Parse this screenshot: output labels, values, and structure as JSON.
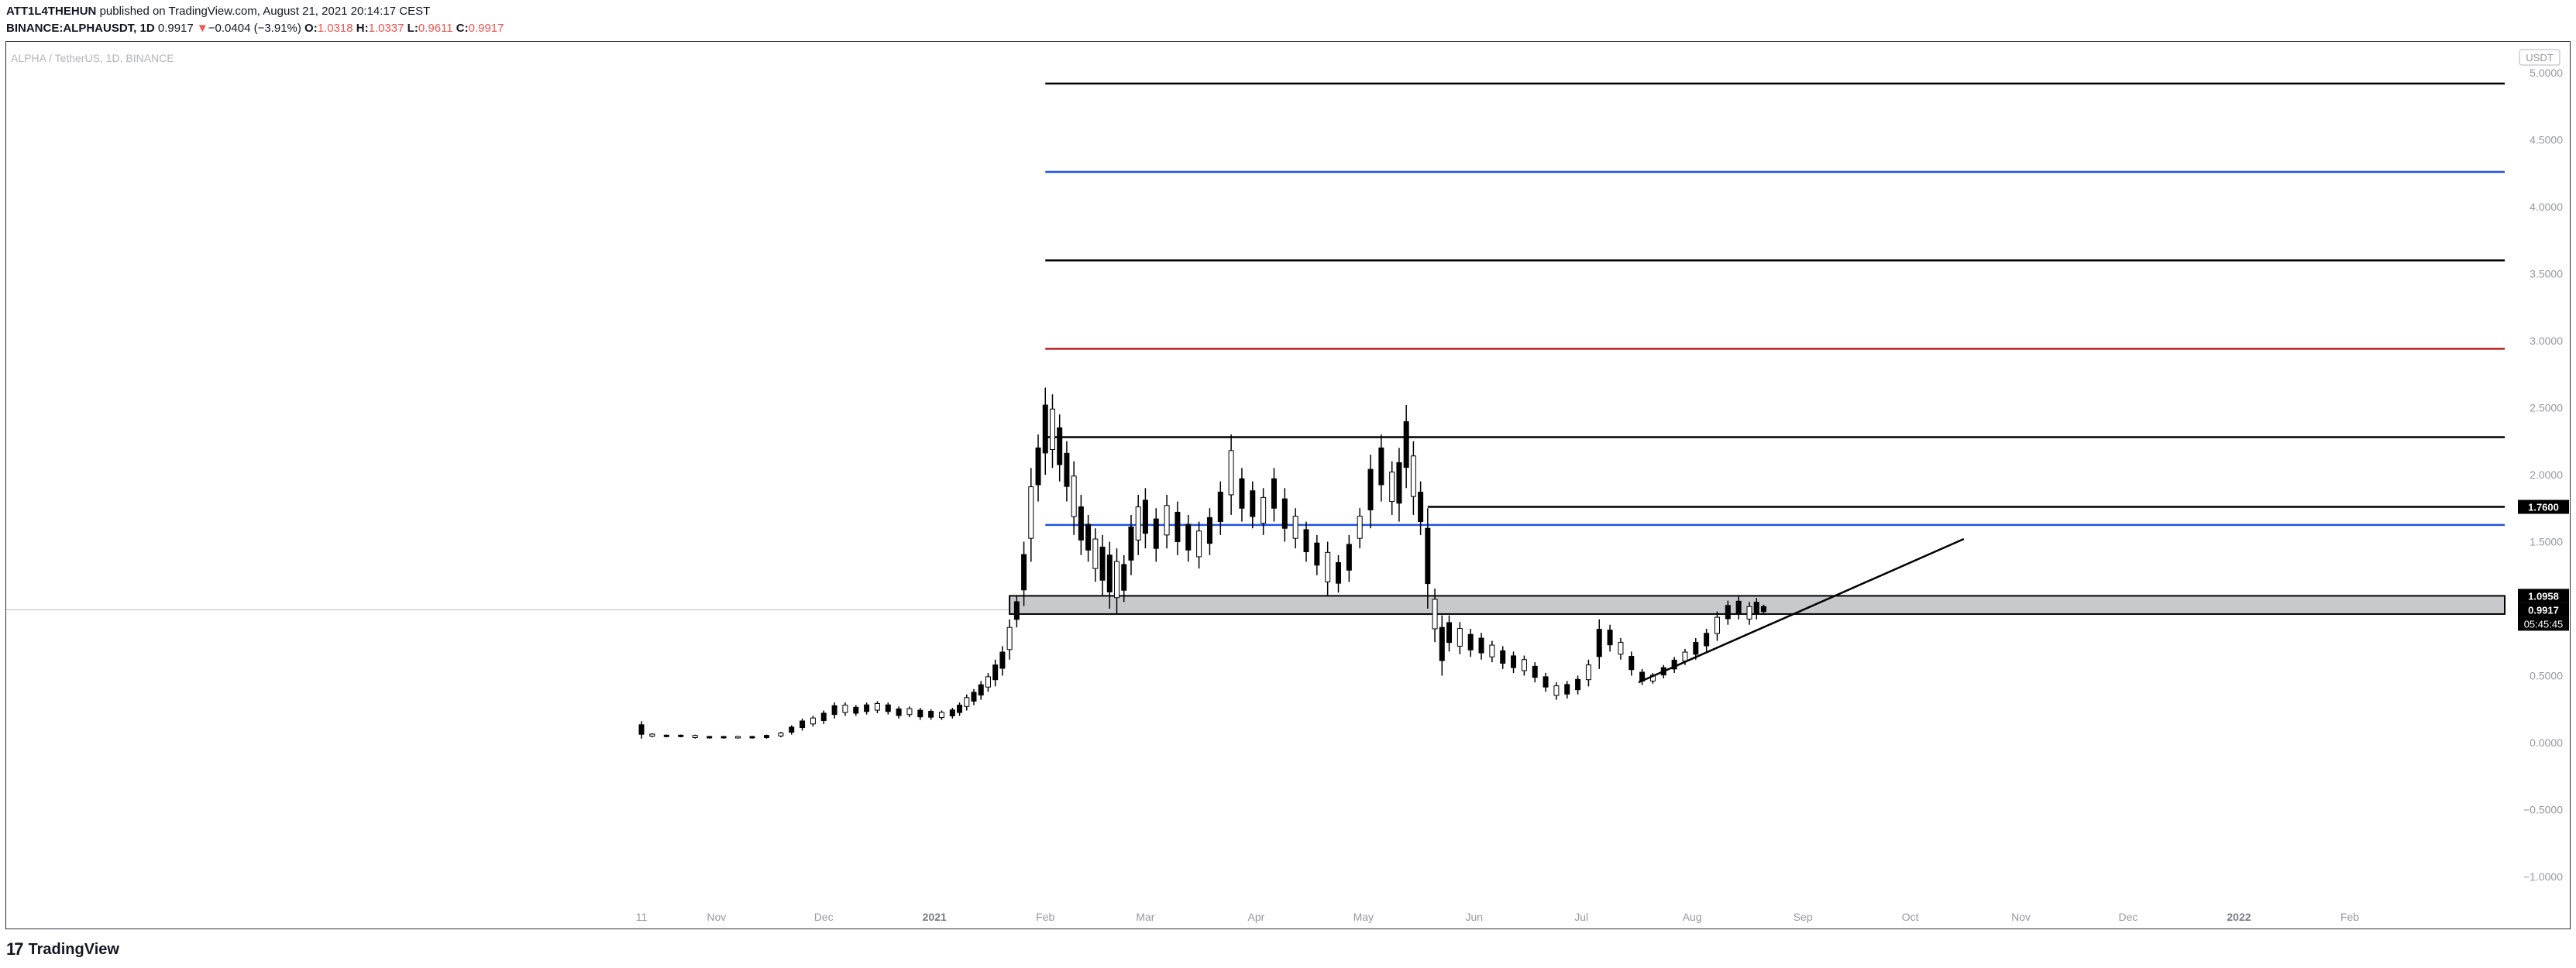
{
  "header": {
    "author": "ATT1L4THEHUN",
    "published_text": "published on TradingView.com, August 21, 2021 20:14:17 CEST",
    "symbol": "BINANCE:ALPHAUSDT, 1D",
    "last": "0.9917",
    "change_arrow": "▼",
    "change": "−0.0404 (−3.91%)",
    "o_label": "O:",
    "o_value": "1.0318",
    "h_label": "H:",
    "h_value": "1.0337",
    "l_label": "L:",
    "l_value": "0.9611",
    "c_label": "C:",
    "c_value": "0.9917"
  },
  "chart_data": {
    "type": "candlestick",
    "title": "ALPHA / TetherUS, 1D, BINANCE",
    "currency_label": "USDT",
    "x_labels": [
      "11",
      "Nov",
      "Dec",
      "2021",
      "Feb",
      "Mar",
      "Apr",
      "May",
      "Jun",
      "Jul",
      "Aug",
      "Sep",
      "Oct",
      "Nov",
      "Dec",
      "2022",
      "Feb"
    ],
    "x_labels_bold": [
      "2021",
      "2022"
    ],
    "x_dates": [
      "2020-10-11",
      "2020-11-01",
      "2020-12-01",
      "2021-01-01",
      "2021-02-01",
      "2021-03-01",
      "2021-04-01",
      "2021-05-01",
      "2021-06-01",
      "2021-07-01",
      "2021-08-01",
      "2021-09-01",
      "2021-10-01",
      "2021-11-01",
      "2021-12-01",
      "2022-01-01",
      "2022-02-01"
    ],
    "y_ticks": [
      5.0,
      4.5,
      4.0,
      3.5,
      3.0,
      2.5,
      2.0,
      1.5,
      0.5,
      0.0,
      -0.5,
      -1.0
    ],
    "y_tick_labels": [
      "5.0000",
      "4.5000",
      "4.0000",
      "3.5000",
      "3.0000",
      "2.5000",
      "2.0000",
      "1.5000",
      "0.5000",
      "0.0000",
      "−0.5000",
      "−1.0000"
    ],
    "ylim": [
      -1.1,
      5.1
    ],
    "price_line": 0.9917,
    "price_badges": [
      {
        "value": 1.76,
        "label": "1.7600"
      },
      {
        "value": 1.0958,
        "label": "1.0958"
      },
      {
        "value": 0.9917,
        "label": "0.9917"
      }
    ],
    "countdown": "05:45:45",
    "horizontal_levels": [
      {
        "y": 4.92,
        "color": "#000000",
        "start": "2021-02-01"
      },
      {
        "y": 4.26,
        "color": "#1e53e5",
        "start": "2021-02-01"
      },
      {
        "y": 3.6,
        "color": "#000000",
        "start": "2021-02-01"
      },
      {
        "y": 2.94,
        "color": "#b71c1c",
        "start": "2021-02-01"
      },
      {
        "y": 2.28,
        "color": "#000000",
        "start": "2021-02-01"
      },
      {
        "y": 1.76,
        "color": "#000000",
        "start": "2021-05-19"
      },
      {
        "y": 1.625,
        "color": "#1e53e5",
        "start": "2021-02-01"
      }
    ],
    "zone": {
      "y_top": 1.0958,
      "y_bottom": 0.96,
      "start": "2021-01-22",
      "color": "#c8c9cc"
    },
    "trendline": {
      "x1": "2021-07-17",
      "y1": 0.45,
      "x2": "2021-10-16",
      "y2": 1.52,
      "color": "#000000"
    },
    "candles": [
      [
        "2020-10-11",
        0.16,
        0.03
      ],
      [
        "2020-10-14",
        0.07,
        0.04
      ],
      [
        "2020-10-18",
        0.06,
        0.04
      ],
      [
        "2020-10-22",
        0.06,
        0.04
      ],
      [
        "2020-10-26",
        0.06,
        0.03
      ],
      [
        "2020-10-30",
        0.05,
        0.03
      ],
      [
        "2020-11-03",
        0.05,
        0.03
      ],
      [
        "2020-11-07",
        0.05,
        0.03
      ],
      [
        "2020-11-11",
        0.05,
        0.03
      ],
      [
        "2020-11-15",
        0.06,
        0.03
      ],
      [
        "2020-11-19",
        0.08,
        0.04
      ],
      [
        "2020-11-22",
        0.13,
        0.06
      ],
      [
        "2020-11-25",
        0.18,
        0.09
      ],
      [
        "2020-11-28",
        0.2,
        0.12
      ],
      [
        "2020-12-01",
        0.24,
        0.14
      ],
      [
        "2020-12-04",
        0.3,
        0.18
      ],
      [
        "2020-12-07",
        0.3,
        0.2
      ],
      [
        "2020-12-10",
        0.28,
        0.2
      ],
      [
        "2020-12-13",
        0.3,
        0.21
      ],
      [
        "2020-12-16",
        0.31,
        0.22
      ],
      [
        "2020-12-19",
        0.3,
        0.21
      ],
      [
        "2020-12-22",
        0.27,
        0.18
      ],
      [
        "2020-12-25",
        0.27,
        0.19
      ],
      [
        "2020-12-28",
        0.26,
        0.17
      ],
      [
        "2020-12-31",
        0.25,
        0.17
      ],
      [
        "2021-01-03",
        0.24,
        0.17
      ],
      [
        "2021-01-06",
        0.26,
        0.18
      ],
      [
        "2021-01-08",
        0.3,
        0.2
      ],
      [
        "2021-01-10",
        0.36,
        0.24
      ],
      [
        "2021-01-12",
        0.4,
        0.28
      ],
      [
        "2021-01-14",
        0.46,
        0.32
      ],
      [
        "2021-01-16",
        0.52,
        0.38
      ],
      [
        "2021-01-18",
        0.62,
        0.42
      ],
      [
        "2021-01-20",
        0.72,
        0.5
      ],
      [
        "2021-01-22",
        0.92,
        0.62
      ],
      [
        "2021-01-24",
        1.1,
        0.86
      ],
      [
        "2021-01-26",
        1.5,
        1.02
      ],
      [
        "2021-01-28",
        2.05,
        1.35
      ],
      [
        "2021-01-30",
        2.3,
        1.8
      ],
      [
        "2021-02-01",
        2.65,
        2.0
      ],
      [
        "2021-02-03",
        2.6,
        2.05
      ],
      [
        "2021-02-05",
        2.45,
        1.95
      ],
      [
        "2021-02-07",
        2.25,
        1.8
      ],
      [
        "2021-02-09",
        2.1,
        1.55
      ],
      [
        "2021-02-11",
        1.85,
        1.4
      ],
      [
        "2021-02-13",
        1.7,
        1.35
      ],
      [
        "2021-02-15",
        1.6,
        1.2
      ],
      [
        "2021-02-17",
        1.55,
        1.1
      ],
      [
        "2021-02-19",
        1.5,
        1.0
      ],
      [
        "2021-02-21",
        1.45,
        0.96
      ],
      [
        "2021-02-23",
        1.4,
        1.05
      ],
      [
        "2021-02-25",
        1.7,
        1.25
      ],
      [
        "2021-02-27",
        1.85,
        1.4
      ],
      [
        "2021-03-01",
        1.9,
        1.45
      ],
      [
        "2021-03-04",
        1.75,
        1.35
      ],
      [
        "2021-03-07",
        1.85,
        1.45
      ],
      [
        "2021-03-10",
        1.8,
        1.4
      ],
      [
        "2021-03-13",
        1.7,
        1.35
      ],
      [
        "2021-03-16",
        1.65,
        1.3
      ],
      [
        "2021-03-19",
        1.75,
        1.4
      ],
      [
        "2021-03-22",
        1.95,
        1.55
      ],
      [
        "2021-03-25",
        2.3,
        1.7
      ],
      [
        "2021-03-28",
        2.05,
        1.65
      ],
      [
        "2021-03-31",
        1.95,
        1.6
      ],
      [
        "2021-04-03",
        1.9,
        1.55
      ],
      [
        "2021-04-06",
        2.05,
        1.65
      ],
      [
        "2021-04-09",
        1.9,
        1.5
      ],
      [
        "2021-04-12",
        1.75,
        1.45
      ],
      [
        "2021-04-15",
        1.65,
        1.35
      ],
      [
        "2021-04-18",
        1.55,
        1.25
      ],
      [
        "2021-04-21",
        1.5,
        1.1
      ],
      [
        "2021-04-24",
        1.4,
        1.12
      ],
      [
        "2021-04-27",
        1.55,
        1.2
      ],
      [
        "2021-04-30",
        1.75,
        1.45
      ],
      [
        "2021-05-03",
        2.15,
        1.6
      ],
      [
        "2021-05-06",
        2.3,
        1.8
      ],
      [
        "2021-05-09",
        2.1,
        1.7
      ],
      [
        "2021-05-11",
        2.2,
        1.65
      ],
      [
        "2021-05-13",
        2.52,
        1.9
      ],
      [
        "2021-05-15",
        2.25,
        1.7
      ],
      [
        "2021-05-17",
        1.95,
        1.55
      ],
      [
        "2021-05-19",
        1.75,
        1.0
      ],
      [
        "2021-05-21",
        1.15,
        0.75
      ],
      [
        "2021-05-23",
        0.95,
        0.5
      ],
      [
        "2021-05-25",
        0.95,
        0.68
      ],
      [
        "2021-05-28",
        0.9,
        0.66
      ],
      [
        "2021-05-31",
        0.85,
        0.64
      ],
      [
        "2021-06-03",
        0.82,
        0.62
      ],
      [
        "2021-06-06",
        0.76,
        0.6
      ],
      [
        "2021-06-09",
        0.72,
        0.55
      ],
      [
        "2021-06-12",
        0.68,
        0.52
      ],
      [
        "2021-06-15",
        0.65,
        0.5
      ],
      [
        "2021-06-18",
        0.6,
        0.45
      ],
      [
        "2021-06-21",
        0.52,
        0.38
      ],
      [
        "2021-06-24",
        0.45,
        0.32
      ],
      [
        "2021-06-27",
        0.46,
        0.33
      ],
      [
        "2021-06-30",
        0.5,
        0.36
      ],
      [
        "2021-07-03",
        0.62,
        0.42
      ],
      [
        "2021-07-06",
        0.92,
        0.55
      ],
      [
        "2021-07-09",
        0.88,
        0.68
      ],
      [
        "2021-07-12",
        0.78,
        0.62
      ],
      [
        "2021-07-15",
        0.68,
        0.5
      ],
      [
        "2021-07-18",
        0.55,
        0.43
      ],
      [
        "2021-07-21",
        0.52,
        0.44
      ],
      [
        "2021-07-24",
        0.58,
        0.48
      ],
      [
        "2021-07-27",
        0.64,
        0.52
      ],
      [
        "2021-07-30",
        0.7,
        0.58
      ],
      [
        "2021-08-02",
        0.78,
        0.62
      ],
      [
        "2021-08-05",
        0.85,
        0.68
      ],
      [
        "2021-08-08",
        0.98,
        0.76
      ],
      [
        "2021-08-11",
        1.06,
        0.88
      ],
      [
        "2021-08-14",
        1.09,
        0.92
      ],
      [
        "2021-08-17",
        1.05,
        0.88
      ],
      [
        "2021-08-19",
        1.08,
        0.92
      ],
      [
        "2021-08-21",
        1.03,
        0.96
      ]
    ]
  },
  "footer": {
    "brand": "TradingView",
    "glyph": "17"
  }
}
